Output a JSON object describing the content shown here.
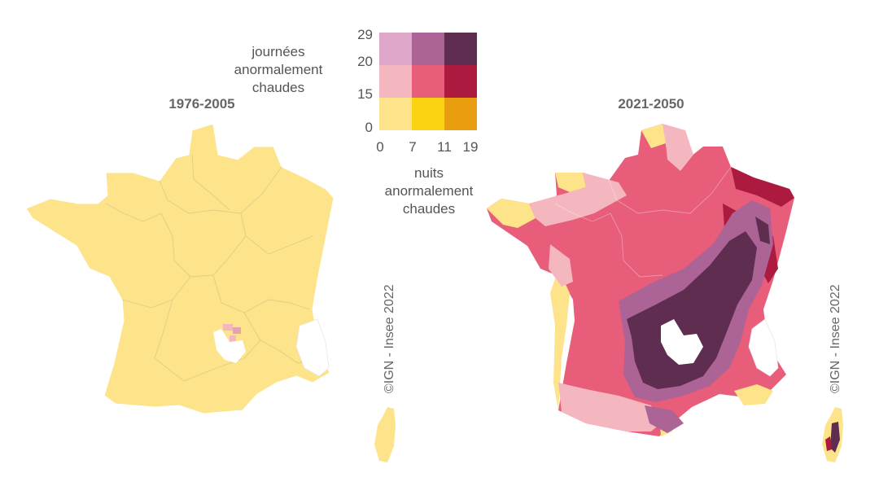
{
  "maps": [
    {
      "title": "1976-2005"
    },
    {
      "title": "2021-2050"
    }
  ],
  "legend": {
    "y_axis_label_lines": [
      "journées",
      "anormalement",
      "chaudes"
    ],
    "x_axis_label_lines": [
      "nuits",
      "anormalement",
      "chaudes"
    ],
    "y_ticks": [
      "29",
      "20",
      "15",
      "0"
    ],
    "x_ticks": [
      "0",
      "7",
      "11",
      "19"
    ],
    "grid_colors": [
      [
        "#dfa7c9",
        "#ac6395",
        "#5f2d50"
      ],
      [
        "#f4b7bf",
        "#e85d7a",
        "#ad1a3f"
      ],
      [
        "#fde38a",
        "#fcd312",
        "#e99e0f"
      ]
    ]
  },
  "credits": [
    "©IGN - Insee 2022",
    "©IGN - Insee 2022"
  ],
  "colors": {
    "base_yellow": "#fde38a",
    "pink_light": "#f4b7bf",
    "pink": "#e85d7a",
    "crimson": "#ad1a3f",
    "purple": "#ac6395",
    "dark_purple": "#5f2d50",
    "border": "#e0cc84"
  }
}
